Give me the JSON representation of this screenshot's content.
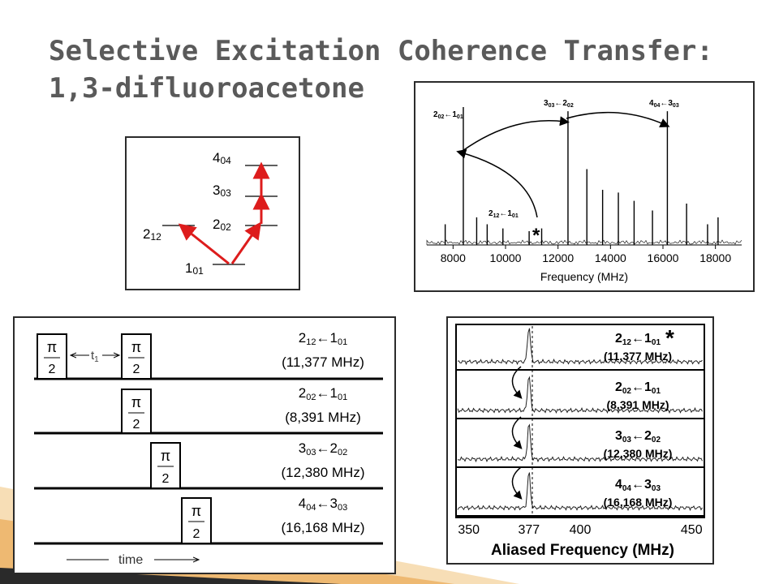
{
  "title": {
    "line1": "Selective Excitation Coherence Transfer:",
    "line2": "1,3-difluoroacetone"
  },
  "colors": {
    "accent_red": "#dd1c1c",
    "title_gray": "#5a5a5a",
    "border": "#2b2b2b"
  },
  "energy_diagram": {
    "levels": [
      {
        "main": "4",
        "sub": "04"
      },
      {
        "main": "3",
        "sub": "03"
      },
      {
        "main": "2",
        "sub": "02"
      },
      {
        "main": "2",
        "sub": "12"
      },
      {
        "main": "1",
        "sub": "01"
      }
    ]
  },
  "spectrum": {
    "labels": {
      "t1": {
        "a": "2",
        "as": "02",
        "arrow": "←",
        "b": "1",
        "bs": "01"
      },
      "t2": {
        "a": "3",
        "as": "03",
        "arrow": "←",
        "b": "2",
        "bs": "02"
      },
      "t3": {
        "a": "4",
        "as": "04",
        "arrow": "←",
        "b": "3",
        "bs": "03"
      },
      "t4": {
        "a": "2",
        "as": "12",
        "arrow": "←",
        "b": "1",
        "bs": "01"
      }
    },
    "star": "*",
    "chart_data": {
      "type": "line",
      "xlabel": "Frequency (MHz)",
      "xlim": [
        7000,
        19000
      ],
      "xticks": [
        "8000",
        "10000",
        "12000",
        "14000",
        "16000",
        "18000"
      ],
      "peaks": [
        {
          "x": 8391,
          "y": 1.0
        },
        {
          "x": 7700,
          "y": 0.15
        },
        {
          "x": 8900,
          "y": 0.2
        },
        {
          "x": 9300,
          "y": 0.15
        },
        {
          "x": 9900,
          "y": 0.12
        },
        {
          "x": 10900,
          "y": 0.1
        },
        {
          "x": 11377,
          "y": 0.12
        },
        {
          "x": 12380,
          "y": 0.97
        },
        {
          "x": 13100,
          "y": 0.55
        },
        {
          "x": 13700,
          "y": 0.4
        },
        {
          "x": 14300,
          "y": 0.38
        },
        {
          "x": 14900,
          "y": 0.32
        },
        {
          "x": 15600,
          "y": 0.25
        },
        {
          "x": 16168,
          "y": 0.97
        },
        {
          "x": 16900,
          "y": 0.3
        },
        {
          "x": 17700,
          "y": 0.15
        },
        {
          "x": 18100,
          "y": 0.2
        }
      ]
    }
  },
  "pulse_sequence": {
    "pulse": {
      "num": "π",
      "den": "2"
    },
    "delay_label": "t",
    "delay_sub": "1",
    "time_label": "time",
    "rows": [
      {
        "a": "2",
        "as": "12",
        "b": "1",
        "bs": "01",
        "freq": "(11,377 MHz)"
      },
      {
        "a": "2",
        "as": "02",
        "b": "1",
        "bs": "01",
        "freq": "(8,391 MHz)"
      },
      {
        "a": "3",
        "as": "03",
        "b": "2",
        "bs": "02",
        "freq": "(12,380 MHz)"
      },
      {
        "a": "4",
        "as": "04",
        "b": "3",
        "bs": "03",
        "freq": "(16,168 MHz)"
      }
    ]
  },
  "aliased": {
    "star": "*",
    "rows": [
      {
        "a": "2",
        "as": "12",
        "b": "1",
        "bs": "01",
        "freq": "(11,377 MHz)"
      },
      {
        "a": "2",
        "as": "02",
        "b": "1",
        "bs": "01",
        "freq": "(8,391 MHz)"
      },
      {
        "a": "3",
        "as": "03",
        "b": "2",
        "bs": "02",
        "freq": "(12,380 MHz)"
      },
      {
        "a": "4",
        "as": "04",
        "b": "3",
        "bs": "03",
        "freq": "(16,168 MHz)"
      }
    ],
    "chart_data": {
      "type": "line",
      "xlabel": "Aliased Frequency (MHz)",
      "xlim": [
        345,
        455
      ],
      "xticks": [
        "350",
        "377",
        "400",
        "450"
      ],
      "peak_x": 377
    }
  }
}
